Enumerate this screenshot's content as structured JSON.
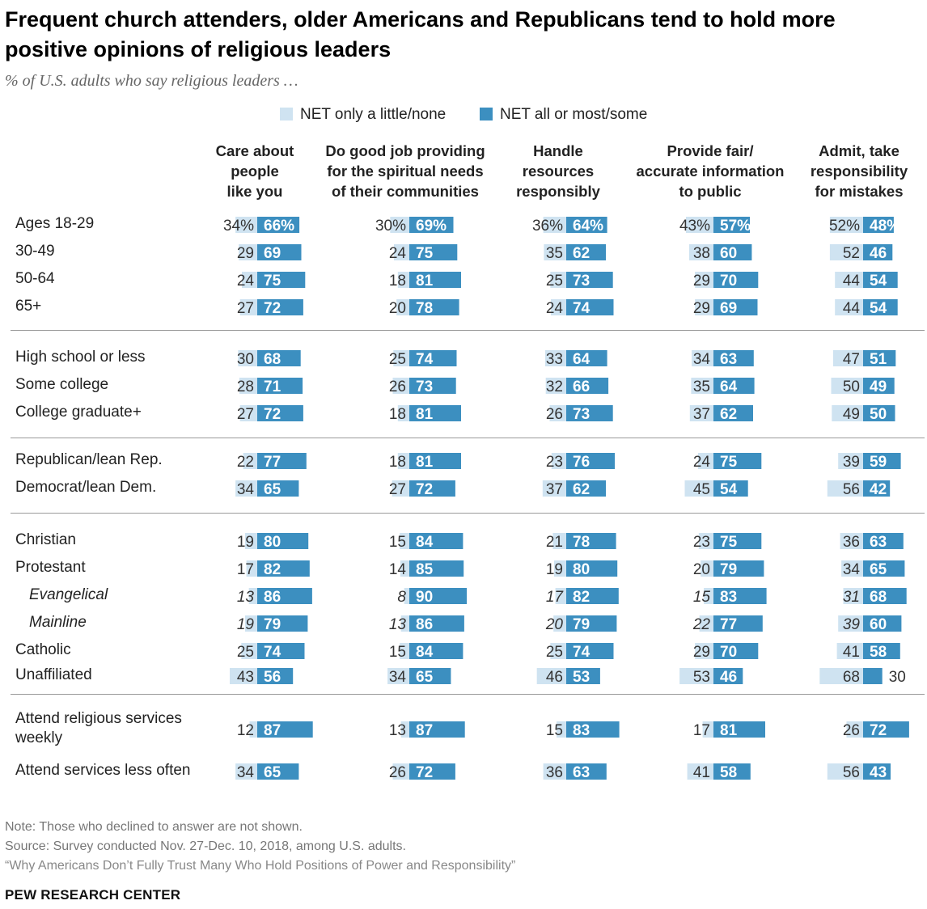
{
  "title": "Frequent church attenders, older Americans and Republicans tend to hold more positive opinions of religious leaders",
  "subtitle": "% of U.S. adults who say religious leaders …",
  "colors": {
    "light": "#cfe3f1",
    "dark": "#3c8fc0",
    "text_on_dark": "#ffffff",
    "separator": "#9a9a9a"
  },
  "legend": {
    "light_label": "NET only a little/none",
    "dark_label": "NET all or most/some"
  },
  "columns": [
    "Care about\npeople\nlike you",
    "Do good job providing\nfor the spiritual needs\nof their communities",
    "Handle\nresources\nresponsibly",
    "Provide fair/\naccurate information\nto public",
    "Admit, take\nresponsibility\nfor mistakes"
  ],
  "chart_data": {
    "type": "bar",
    "subtype": "diverging-stacked-horizontal",
    "series": [
      {
        "name": "NET only a little/none",
        "key": "low"
      },
      {
        "name": "NET all or most/some",
        "key": "high"
      }
    ],
    "rows": [
      {
        "label": "Ages 18-29",
        "pct": true,
        "values": [
          [
            34,
            66
          ],
          [
            30,
            69
          ],
          [
            36,
            64
          ],
          [
            43,
            57
          ],
          [
            52,
            48
          ]
        ]
      },
      {
        "label": "30-49",
        "values": [
          [
            29,
            69
          ],
          [
            24,
            75
          ],
          [
            35,
            62
          ],
          [
            38,
            60
          ],
          [
            52,
            46
          ]
        ]
      },
      {
        "label": "50-64",
        "values": [
          [
            24,
            75
          ],
          [
            18,
            81
          ],
          [
            25,
            73
          ],
          [
            29,
            70
          ],
          [
            44,
            54
          ]
        ]
      },
      {
        "label": "65+",
        "values": [
          [
            27,
            72
          ],
          [
            20,
            78
          ],
          [
            24,
            74
          ],
          [
            29,
            69
          ],
          [
            44,
            54
          ]
        ]
      },
      {
        "label": "High school or less",
        "values": [
          [
            30,
            68
          ],
          [
            25,
            74
          ],
          [
            33,
            64
          ],
          [
            34,
            63
          ],
          [
            47,
            51
          ]
        ]
      },
      {
        "label": "Some college",
        "values": [
          [
            28,
            71
          ],
          [
            26,
            73
          ],
          [
            32,
            66
          ],
          [
            35,
            64
          ],
          [
            50,
            49
          ]
        ]
      },
      {
        "label": "College graduate+",
        "values": [
          [
            27,
            72
          ],
          [
            18,
            81
          ],
          [
            26,
            73
          ],
          [
            37,
            62
          ],
          [
            49,
            50
          ]
        ]
      },
      {
        "label": "Republican/lean Rep.",
        "values": [
          [
            22,
            77
          ],
          [
            18,
            81
          ],
          [
            23,
            76
          ],
          [
            24,
            75
          ],
          [
            39,
            59
          ]
        ]
      },
      {
        "label": "Democrat/lean Dem.",
        "values": [
          [
            34,
            65
          ],
          [
            27,
            72
          ],
          [
            37,
            62
          ],
          [
            45,
            54
          ],
          [
            56,
            42
          ]
        ]
      },
      {
        "label": "Christian",
        "values": [
          [
            19,
            80
          ],
          [
            15,
            84
          ],
          [
            21,
            78
          ],
          [
            23,
            75
          ],
          [
            36,
            63
          ]
        ]
      },
      {
        "label": "Protestant",
        "values": [
          [
            17,
            82
          ],
          [
            14,
            85
          ],
          [
            19,
            80
          ],
          [
            20,
            79
          ],
          [
            34,
            65
          ]
        ]
      },
      {
        "label": "Evangelical",
        "italic": true,
        "values": [
          [
            13,
            86
          ],
          [
            8,
            90
          ],
          [
            17,
            82
          ],
          [
            15,
            83
          ],
          [
            31,
            68
          ]
        ]
      },
      {
        "label": "Mainline",
        "italic": true,
        "values": [
          [
            19,
            79
          ],
          [
            13,
            86
          ],
          [
            20,
            79
          ],
          [
            22,
            77
          ],
          [
            39,
            60
          ]
        ]
      },
      {
        "label": "Catholic",
        "values": [
          [
            25,
            74
          ],
          [
            15,
            84
          ],
          [
            25,
            74
          ],
          [
            29,
            70
          ],
          [
            41,
            58
          ]
        ]
      },
      {
        "label": "Unaffiliated",
        "values": [
          [
            43,
            56
          ],
          [
            34,
            65
          ],
          [
            46,
            53
          ],
          [
            53,
            46
          ],
          [
            68,
            30
          ]
        ]
      },
      {
        "label": "Attend religious services\nweekly",
        "values": [
          [
            12,
            87
          ],
          [
            13,
            87
          ],
          [
            15,
            83
          ],
          [
            17,
            81
          ],
          [
            26,
            72
          ]
        ]
      },
      {
        "label": "Attend services less often",
        "values": [
          [
            34,
            65
          ],
          [
            26,
            72
          ],
          [
            36,
            63
          ],
          [
            41,
            58
          ],
          [
            56,
            43
          ]
        ]
      }
    ]
  },
  "footer": {
    "note": "Note: Those who declined to answer are not shown.",
    "source": "Source: Survey conducted Nov. 27-Dec. 10, 2018, among U.S. adults.",
    "report": "“Why Americans Don’t Fully Trust Many Who Hold Positions of Power and Responsibility”",
    "brand": "PEW RESEARCH CENTER"
  }
}
